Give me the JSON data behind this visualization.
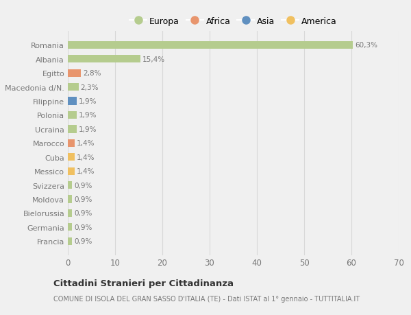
{
  "categories": [
    "Francia",
    "Germania",
    "Bielorussia",
    "Moldova",
    "Svizzera",
    "Messico",
    "Cuba",
    "Marocco",
    "Ucraina",
    "Polonia",
    "Filippine",
    "Macedonia d/N.",
    "Egitto",
    "Albania",
    "Romania"
  ],
  "values": [
    0.9,
    0.9,
    0.9,
    0.9,
    0.9,
    1.4,
    1.4,
    1.4,
    1.9,
    1.9,
    1.9,
    2.3,
    2.8,
    15.4,
    60.3
  ],
  "bar_colors": [
    "#b5cc8e",
    "#b5cc8e",
    "#b5cc8e",
    "#b5cc8e",
    "#b5cc8e",
    "#f0c060",
    "#f0c060",
    "#e8956d",
    "#b5cc8e",
    "#b5cc8e",
    "#6090c0",
    "#b5cc8e",
    "#e8956d",
    "#b5cc8e",
    "#b5cc8e"
  ],
  "bar_labels": [
    "0,9%",
    "0,9%",
    "0,9%",
    "0,9%",
    "0,9%",
    "1,4%",
    "1,4%",
    "1,4%",
    "1,9%",
    "1,9%",
    "1,9%",
    "2,3%",
    "2,8%",
    "15,4%",
    "60,3%"
  ],
  "legend_labels": [
    "Europa",
    "Africa",
    "Asia",
    "America"
  ],
  "legend_colors": [
    "#b5cc8e",
    "#e8956d",
    "#6090c0",
    "#f0c060"
  ],
  "xlim": [
    0,
    70
  ],
  "xticks": [
    0,
    10,
    20,
    30,
    40,
    50,
    60,
    70
  ],
  "title_main": "Cittadini Stranieri per Cittadinanza",
  "title_sub": "COMUNE DI ISOLA DEL GRAN SASSO D'ITALIA (TE) - Dati ISTAT al 1° gennaio - TUTTITALIA.IT",
  "bg_color": "#f0f0f0",
  "grid_color": "#d8d8d8",
  "label_color": "#777777",
  "bar_height": 0.55
}
